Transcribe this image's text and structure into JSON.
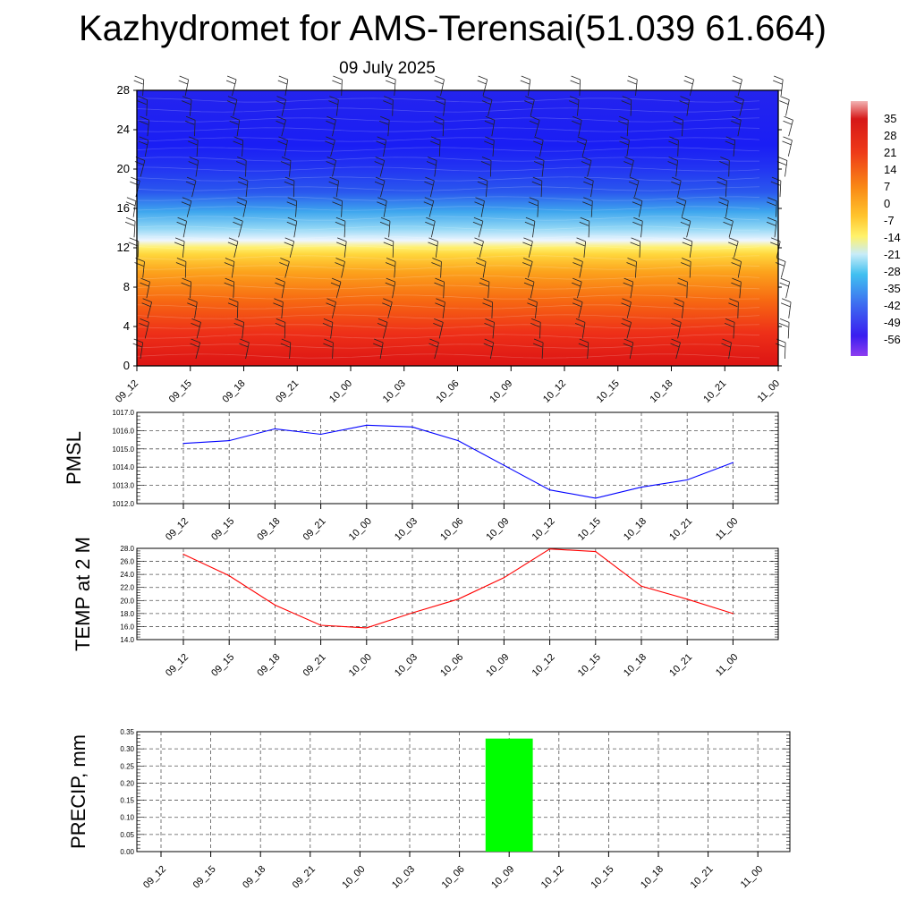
{
  "header": {
    "title": "Kazhydromet for AMS-Terensai(51.039 61.664)",
    "subtitle": "09 July 2025"
  },
  "chart_data": [
    {
      "type": "heatmap",
      "ylim": [
        0,
        28
      ],
      "yticks": [
        "0",
        "4",
        "8",
        "12",
        "16",
        "20",
        "24",
        "28"
      ],
      "categories": [
        "09_12",
        "09_15",
        "09_18",
        "09_21",
        "10_00",
        "10_03",
        "10_06",
        "10_09",
        "10_12",
        "10_15",
        "10_18",
        "10_21",
        "11_00"
      ],
      "colorbar": {
        "labels": [
          "35",
          "28",
          "21",
          "14",
          "7",
          "0",
          "-7",
          "-14",
          "-21",
          "-28",
          "-35",
          "-42",
          "-49",
          "-56"
        ],
        "range": [
          -63,
          42
        ]
      },
      "wind_barbs": true
    },
    {
      "type": "line",
      "ylabel": "PMSL",
      "ylim": [
        1012.0,
        1017.0
      ],
      "yticks": [
        "1012.0",
        "1013.0",
        "1014.0",
        "1015.0",
        "1016.0",
        "1017.0"
      ],
      "categories": [
        "09_12",
        "09_15",
        "09_18",
        "09_21",
        "10_00",
        "10_03",
        "10_06",
        "10_09",
        "10_12",
        "10_15",
        "10_18",
        "10_21",
        "11_00"
      ],
      "values": [
        1015.3,
        1015.45,
        1016.1,
        1015.8,
        1016.3,
        1016.2,
        1015.45,
        1014.1,
        1012.75,
        1012.3,
        1012.9,
        1013.3,
        1014.25
      ],
      "color": "#0000ff"
    },
    {
      "type": "line",
      "ylabel": "TEMP at 2 M",
      "ylim": [
        14.0,
        28.0
      ],
      "yticks": [
        "14.0",
        "16.0",
        "18.0",
        "20.0",
        "22.0",
        "24.0",
        "26.0",
        "28.0"
      ],
      "categories": [
        "09_12",
        "09_15",
        "09_18",
        "09_21",
        "10_00",
        "10_03",
        "10_06",
        "10_09",
        "10_12",
        "10_15",
        "10_18",
        "10_21",
        "11_00"
      ],
      "values": [
        27.1,
        23.8,
        19.3,
        16.2,
        15.8,
        18.1,
        20.2,
        23.5,
        27.9,
        27.5,
        22.2,
        20.2,
        18.0
      ],
      "color": "#ff0000"
    },
    {
      "type": "bar",
      "ylabel": "PRECIP, mm",
      "ylim": [
        0.0,
        0.35
      ],
      "yticks": [
        "0.00",
        "0.05",
        "0.10",
        "0.15",
        "0.20",
        "0.25",
        "0.30",
        "0.35"
      ],
      "categories": [
        "09_12",
        "09_15",
        "09_18",
        "09_21",
        "10_00",
        "10_03",
        "10_06",
        "10_09",
        "10_12",
        "10_15",
        "10_18",
        "10_21",
        "11_00"
      ],
      "values": [
        0,
        0,
        0,
        0,
        0,
        0,
        0,
        0.33,
        0,
        0,
        0,
        0,
        0
      ],
      "color": "#00ff00"
    }
  ]
}
